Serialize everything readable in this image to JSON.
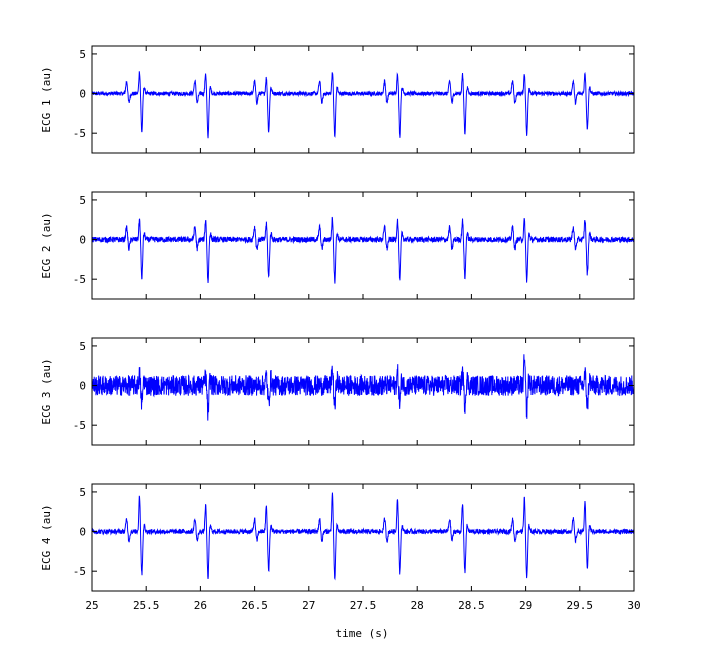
{
  "chart_data": {
    "type": "line",
    "x": {
      "label": "time (s)",
      "lim": [
        25,
        30
      ],
      "ticks": [
        25,
        25.5,
        26,
        26.5,
        27,
        27.5,
        28,
        28.5,
        29,
        29.5,
        30
      ],
      "tick_labels": [
        "25",
        "25.5",
        "26",
        "26.5",
        "27",
        "27.5",
        "28",
        "28.5",
        "29",
        "29.5",
        "30"
      ]
    },
    "line_color": "#0000ff",
    "grid": false,
    "panels": [
      {
        "ylabel": "ECG 1 (au)",
        "ylim": [
          -7.5,
          6
        ],
        "yticks": [
          -5,
          0,
          5
        ],
        "ytick_labels": [
          "-5",
          "0",
          "5"
        ],
        "noise_amplitude": 0.25,
        "beats": [
          {
            "t": 25.45,
            "peak": 2.8,
            "trough": -4.9
          },
          {
            "t": 26.06,
            "peak": 2.6,
            "trough": -5.6
          },
          {
            "t": 26.62,
            "peak": 2.0,
            "trough": -4.8
          },
          {
            "t": 27.23,
            "peak": 2.8,
            "trough": -5.5
          },
          {
            "t": 27.83,
            "peak": 2.6,
            "trough": -5.5
          },
          {
            "t": 28.43,
            "peak": 2.4,
            "trough": -5.0
          },
          {
            "t": 29.0,
            "peak": 2.5,
            "trough": -5.3
          },
          {
            "t": 29.56,
            "peak": 2.7,
            "trough": -4.5
          }
        ],
        "minor_beats": [
          25.32,
          25.95,
          26.5,
          27.1,
          27.7,
          28.3,
          28.88,
          29.44
        ]
      },
      {
        "ylabel": "ECG 2 (au)",
        "ylim": [
          -7.5,
          6
        ],
        "yticks": [
          -5,
          0,
          5
        ],
        "ytick_labels": [
          "-5",
          "0",
          "5"
        ],
        "noise_amplitude": 0.35,
        "beats": [
          {
            "t": 25.45,
            "peak": 2.6,
            "trough": -4.9
          },
          {
            "t": 26.06,
            "peak": 2.5,
            "trough": -5.4
          },
          {
            "t": 26.62,
            "peak": 2.0,
            "trough": -4.8
          },
          {
            "t": 27.23,
            "peak": 2.7,
            "trough": -5.3
          },
          {
            "t": 27.83,
            "peak": 2.5,
            "trough": -5.3
          },
          {
            "t": 28.43,
            "peak": 2.4,
            "trough": -4.9
          },
          {
            "t": 29.0,
            "peak": 2.5,
            "trough": -5.2
          },
          {
            "t": 29.56,
            "peak": 2.6,
            "trough": -4.4
          }
        ],
        "minor_beats": [
          25.32,
          25.95,
          26.5,
          27.1,
          27.7,
          28.3,
          28.88,
          29.44
        ]
      },
      {
        "ylabel": "ECG 3 (au)",
        "ylim": [
          -7.5,
          6
        ],
        "yticks": [
          -5,
          0,
          5
        ],
        "ytick_labels": [
          "-5",
          "0",
          "5"
        ],
        "noise_amplitude": 1.3,
        "beats": [
          {
            "t": 25.45,
            "peak": 1.4,
            "trough": -2.4
          },
          {
            "t": 26.06,
            "peak": 1.2,
            "trough": -3.5
          },
          {
            "t": 26.62,
            "peak": 1.2,
            "trough": -2.4
          },
          {
            "t": 27.23,
            "peak": 2.2,
            "trough": -2.8
          },
          {
            "t": 27.83,
            "peak": 1.6,
            "trough": -2.3
          },
          {
            "t": 28.43,
            "peak": 1.8,
            "trough": -2.4
          },
          {
            "t": 29.0,
            "peak": 3.3,
            "trough": -3.1
          },
          {
            "t": 29.56,
            "peak": 1.4,
            "trough": -2.6
          }
        ],
        "minor_beats": []
      },
      {
        "ylabel": "ECG 4 (au)",
        "ylim": [
          -7.5,
          6
        ],
        "yticks": [
          -5,
          0,
          5
        ],
        "ytick_labels": [
          "-5",
          "0",
          "5"
        ],
        "noise_amplitude": 0.3,
        "beats": [
          {
            "t": 25.45,
            "peak": 4.6,
            "trough": -5.4
          },
          {
            "t": 26.06,
            "peak": 3.3,
            "trough": -5.9
          },
          {
            "t": 26.62,
            "peak": 3.2,
            "trough": -4.9
          },
          {
            "t": 27.23,
            "peak": 4.8,
            "trough": -6.0
          },
          {
            "t": 27.83,
            "peak": 4.3,
            "trough": -5.3
          },
          {
            "t": 28.43,
            "peak": 3.4,
            "trough": -5.1
          },
          {
            "t": 29.0,
            "peak": 4.2,
            "trough": -5.9
          },
          {
            "t": 29.56,
            "peak": 3.6,
            "trough": -4.5
          }
        ],
        "minor_beats": [
          25.32,
          25.95,
          26.5,
          27.1,
          27.7,
          28.3,
          28.88,
          29.44
        ]
      }
    ]
  }
}
